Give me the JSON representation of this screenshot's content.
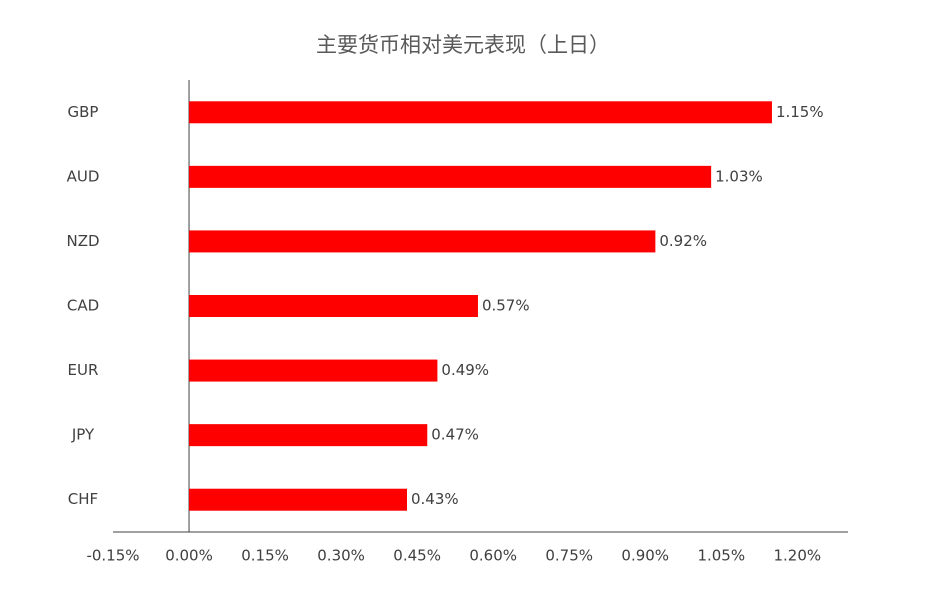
{
  "chart_data": {
    "type": "hbar",
    "title": "主要货币相对美元表现（上日）",
    "categories": [
      "GBP",
      "AUD",
      "NZD",
      "CAD",
      "EUR",
      "JPY",
      "CHF"
    ],
    "values": [
      1.15,
      1.03,
      0.92,
      0.57,
      0.49,
      0.47,
      0.43
    ],
    "value_labels": [
      "1.15%",
      "1.03%",
      "0.92%",
      "0.57%",
      "0.49%",
      "0.47%",
      "0.43%"
    ],
    "color": "#ff0000",
    "xlim": [
      -0.15,
      1.3
    ],
    "xticks": [
      {
        "value": -0.15,
        "label": "-0.15%"
      },
      {
        "value": 0,
        "label": "0.00%"
      },
      {
        "value": 0.15,
        "label": "0.15%"
      },
      {
        "value": 0.3,
        "label": "0.30%"
      },
      {
        "value": 0.45,
        "label": "0.45%"
      },
      {
        "value": 0.6,
        "label": "0.60%"
      },
      {
        "value": 0.75,
        "label": "0.75%"
      },
      {
        "value": 0.9,
        "label": "0.90%"
      },
      {
        "value": 1.05,
        "label": "1.05%"
      },
      {
        "value": 1.2,
        "label": "1.20%"
      }
    ],
    "grid": false
  }
}
